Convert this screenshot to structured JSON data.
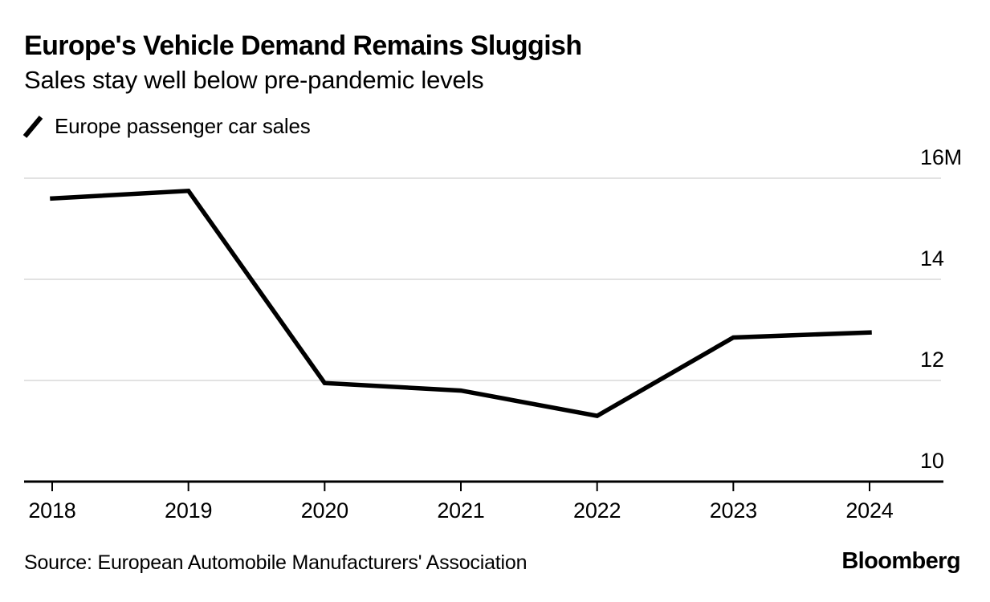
{
  "header": {
    "title": "Europe's Vehicle Demand Remains Sluggish",
    "subtitle": "Sales stay well below pre-pandemic levels"
  },
  "legend": {
    "series_label": "Europe passenger car sales",
    "marker": "line-segment-icon"
  },
  "chart_data": {
    "type": "line",
    "title": "Europe's Vehicle Demand Remains Sluggish",
    "subtitle": "Sales stay well below pre-pandemic levels",
    "categories": [
      "2018",
      "2019",
      "2020",
      "2021",
      "2022",
      "2023",
      "2024"
    ],
    "series": [
      {
        "name": "Europe passenger car sales",
        "values": [
          15.6,
          15.75,
          11.95,
          11.8,
          11.3,
          12.85,
          12.95
        ],
        "color": "#000000"
      }
    ],
    "unit": "millions of vehicles",
    "xlabel": "",
    "ylabel": "",
    "ylim": [
      10,
      16.3
    ],
    "y_ticks": [
      10,
      12,
      14,
      16
    ],
    "y_tick_labels": [
      "10",
      "12",
      "14",
      "16M"
    ],
    "grid": "horizontal",
    "legend_position": "top-left",
    "source": "Source: European Automobile Manufacturers' Association"
  },
  "colors": {
    "line": "#000000",
    "grid": "#e2e2e2",
    "axis": "#000000",
    "text": "#000000",
    "background": "#ffffff"
  },
  "footer": {
    "source": "Source: European Automobile Manufacturers' Association",
    "brand": "Bloomberg"
  }
}
